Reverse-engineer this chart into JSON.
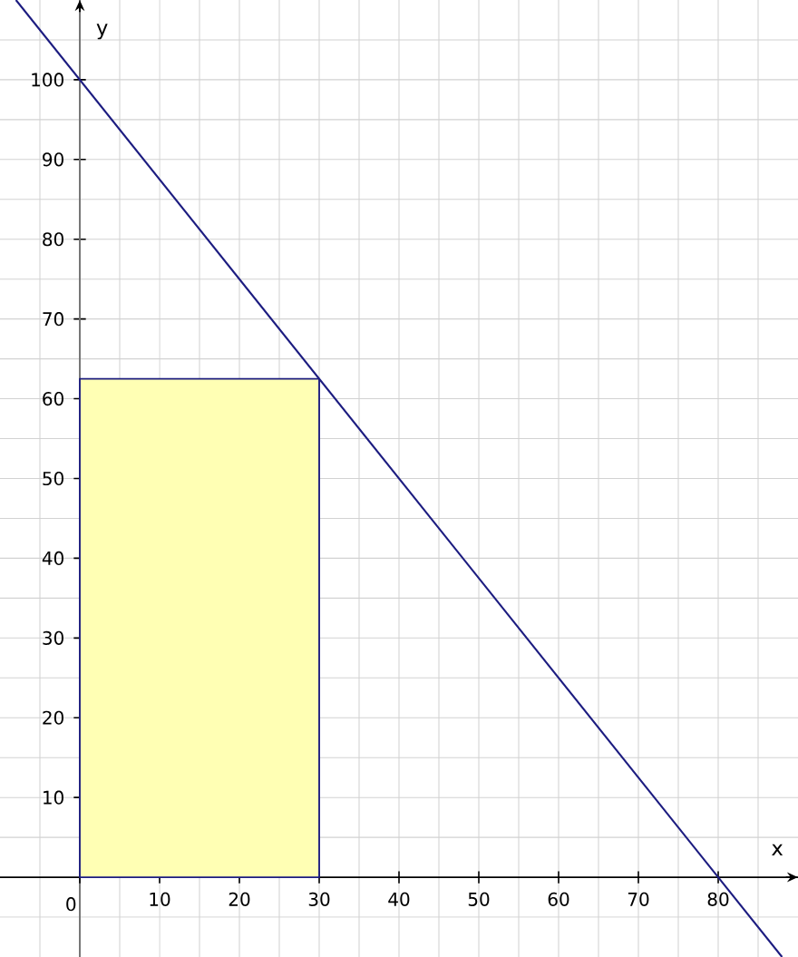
{
  "chart_data": {
    "type": "line",
    "xlabel": "x",
    "ylabel": "y",
    "xlim": [
      -10,
      90
    ],
    "ylim": [
      -10,
      110
    ],
    "xticks": [
      {
        "value": -5,
        "label": null
      },
      0,
      {
        "value": 5,
        "label": null
      },
      10,
      {
        "value": 15,
        "label": null
      },
      20,
      {
        "value": 25,
        "label": null
      },
      30,
      {
        "value": 35,
        "label": null
      },
      40,
      {
        "value": 45,
        "label": null
      },
      50,
      {
        "value": 55,
        "label": null
      },
      60,
      {
        "value": 65,
        "label": null
      },
      70,
      {
        "value": 75,
        "label": null
      },
      80,
      {
        "value": 85,
        "label": null
      }
    ],
    "yticks": [
      {
        "value": -5,
        "label": null
      },
      {
        "value": 5,
        "label": null
      },
      10,
      {
        "value": 15,
        "label": null
      },
      20,
      {
        "value": 25,
        "label": null
      },
      30,
      {
        "value": 35,
        "label": null
      },
      40,
      {
        "value": 45,
        "label": null
      },
      50,
      {
        "value": 55,
        "label": null
      },
      60,
      {
        "value": 65,
        "label": null
      },
      70,
      {
        "value": 75,
        "label": null
      },
      80,
      {
        "value": 85,
        "label": null
      },
      90,
      {
        "value": 95,
        "label": null
      },
      100,
      {
        "value": 105,
        "label": null
      }
    ],
    "grid": true,
    "series": [
      {
        "type": "area",
        "color": "#ffffb4",
        "x": [
          0,
          30
        ],
        "values": [
          62.5,
          62.5
        ]
      },
      {
        "color": "#1c1c80",
        "x": [
          -8,
          88
        ],
        "values": [
          110,
          -10
        ]
      }
    ]
  }
}
